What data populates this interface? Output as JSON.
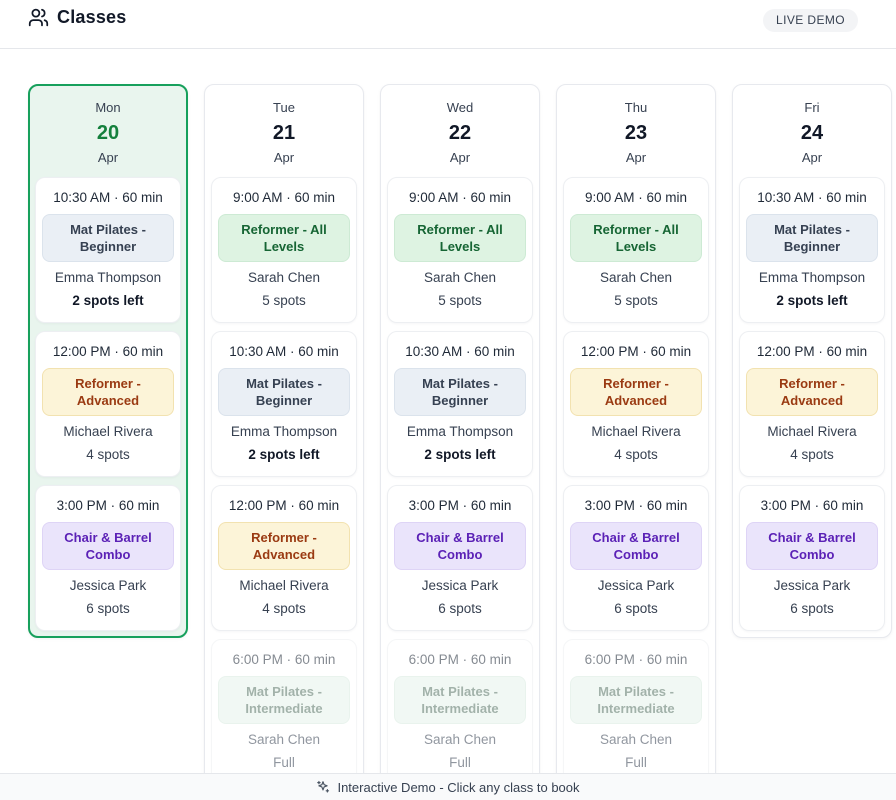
{
  "header": {
    "title": "Classes",
    "live_badge": "LIVE DEMO",
    "icon": "users-icon"
  },
  "footer": {
    "message": "Interactive Demo - Click any class to book",
    "icon": "sparkles-icon"
  },
  "palette": {
    "selected_border": "#17a05c",
    "selected_bg": "#e9f5ee",
    "selected_date_text": "#15803d",
    "badge_slate_bg": "#eaeff5",
    "badge_slate_text": "#364152",
    "badge_green_bg": "#def3e2",
    "badge_green_text": "#166534",
    "badge_amber_bg": "#fcf4d8",
    "badge_amber_text": "#9a3a12",
    "badge_purple_bg": "#eae4fb",
    "badge_purple_text": "#5b21b6",
    "badge_teal_bg": "#e7f3ec"
  },
  "days": [
    {
      "label": "Mon",
      "date": "20",
      "month": "Apr",
      "selected": true,
      "classes": [
        {
          "time": "10:30 AM · 60 min",
          "name": "Mat Pilates - Beginner",
          "color": "slate",
          "instructor": "Emma Thompson",
          "spots": "2 spots left",
          "emphasis": true,
          "full": false
        },
        {
          "time": "12:00 PM · 60 min",
          "name": "Reformer - Advanced",
          "color": "amber",
          "instructor": "Michael Rivera",
          "spots": "4 spots",
          "emphasis": false,
          "full": false
        },
        {
          "time": "3:00 PM · 60 min",
          "name": "Chair & Barrel Combo",
          "color": "purple",
          "instructor": "Jessica Park",
          "spots": "6 spots",
          "emphasis": false,
          "full": false
        }
      ]
    },
    {
      "label": "Tue",
      "date": "21",
      "month": "Apr",
      "selected": false,
      "classes": [
        {
          "time": "9:00 AM · 60 min",
          "name": "Reformer - All Levels",
          "color": "green",
          "instructor": "Sarah Chen",
          "spots": "5 spots",
          "emphasis": false,
          "full": false
        },
        {
          "time": "10:30 AM · 60 min",
          "name": "Mat Pilates - Beginner",
          "color": "slate",
          "instructor": "Emma Thompson",
          "spots": "2 spots left",
          "emphasis": true,
          "full": false
        },
        {
          "time": "12:00 PM · 60 min",
          "name": "Reformer - Advanced",
          "color": "amber",
          "instructor": "Michael Rivera",
          "spots": "4 spots",
          "emphasis": false,
          "full": false
        },
        {
          "time": "6:00 PM · 60 min",
          "name": "Mat Pilates - Intermediate",
          "color": "teal",
          "instructor": "Sarah Chen",
          "spots": "Full",
          "emphasis": false,
          "full": true
        }
      ]
    },
    {
      "label": "Wed",
      "date": "22",
      "month": "Apr",
      "selected": false,
      "classes": [
        {
          "time": "9:00 AM · 60 min",
          "name": "Reformer - All Levels",
          "color": "green",
          "instructor": "Sarah Chen",
          "spots": "5 spots",
          "emphasis": false,
          "full": false
        },
        {
          "time": "10:30 AM · 60 min",
          "name": "Mat Pilates - Beginner",
          "color": "slate",
          "instructor": "Emma Thompson",
          "spots": "2 spots left",
          "emphasis": true,
          "full": false
        },
        {
          "time": "3:00 PM · 60 min",
          "name": "Chair & Barrel Combo",
          "color": "purple",
          "instructor": "Jessica Park",
          "spots": "6 spots",
          "emphasis": false,
          "full": false
        },
        {
          "time": "6:00 PM · 60 min",
          "name": "Mat Pilates - Intermediate",
          "color": "teal",
          "instructor": "Sarah Chen",
          "spots": "Full",
          "emphasis": false,
          "full": true
        }
      ]
    },
    {
      "label": "Thu",
      "date": "23",
      "month": "Apr",
      "selected": false,
      "classes": [
        {
          "time": "9:00 AM · 60 min",
          "name": "Reformer - All Levels",
          "color": "green",
          "instructor": "Sarah Chen",
          "spots": "5 spots",
          "emphasis": false,
          "full": false
        },
        {
          "time": "12:00 PM · 60 min",
          "name": "Reformer - Advanced",
          "color": "amber",
          "instructor": "Michael Rivera",
          "spots": "4 spots",
          "emphasis": false,
          "full": false
        },
        {
          "time": "3:00 PM · 60 min",
          "name": "Chair & Barrel Combo",
          "color": "purple",
          "instructor": "Jessica Park",
          "spots": "6 spots",
          "emphasis": false,
          "full": false
        },
        {
          "time": "6:00 PM · 60 min",
          "name": "Mat Pilates - Intermediate",
          "color": "teal",
          "instructor": "Sarah Chen",
          "spots": "Full",
          "emphasis": false,
          "full": true
        }
      ]
    },
    {
      "label": "Fri",
      "date": "24",
      "month": "Apr",
      "selected": false,
      "classes": [
        {
          "time": "10:30 AM · 60 min",
          "name": "Mat Pilates - Beginner",
          "color": "slate",
          "instructor": "Emma Thompson",
          "spots": "2 spots left",
          "emphasis": true,
          "full": false
        },
        {
          "time": "12:00 PM · 60 min",
          "name": "Reformer - Advanced",
          "color": "amber",
          "instructor": "Michael Rivera",
          "spots": "4 spots",
          "emphasis": false,
          "full": false
        },
        {
          "time": "3:00 PM · 60 min",
          "name": "Chair & Barrel Combo",
          "color": "purple",
          "instructor": "Jessica Park",
          "spots": "6 spots",
          "emphasis": false,
          "full": false
        }
      ]
    }
  ]
}
